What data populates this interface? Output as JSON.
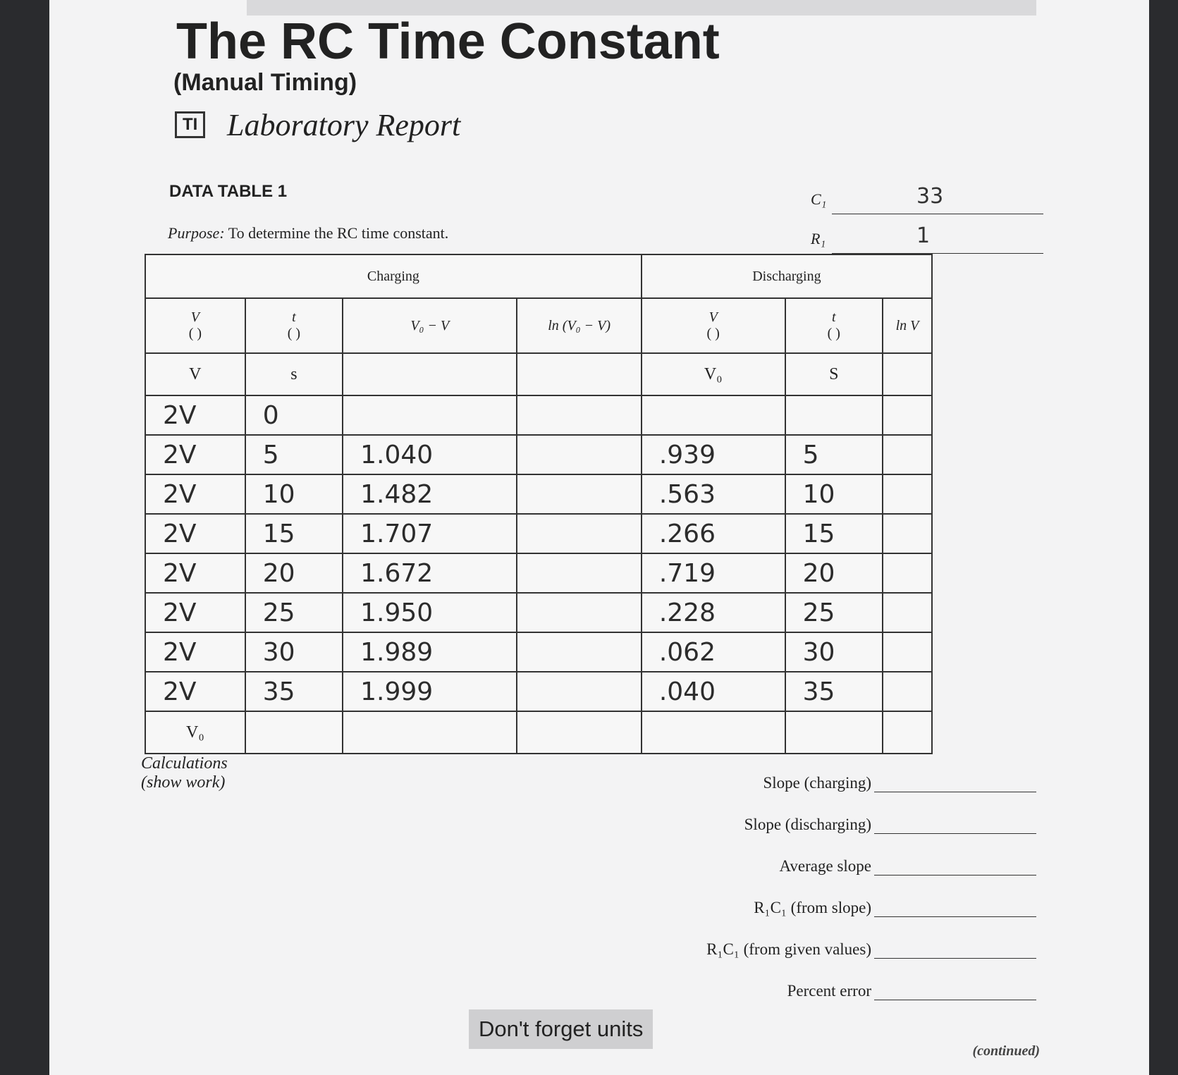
{
  "header": {
    "title": "The RC Time Constant",
    "subtitle": "(Manual Timing)",
    "logo": "TI",
    "report": "Laboratory Report"
  },
  "data_table": {
    "label": "DATA TABLE 1",
    "purpose_label": "Purpose:",
    "purpose": "To determine the RC time constant.",
    "fields": [
      {
        "label": "C₁",
        "value": "33"
      },
      {
        "label": "R₁",
        "value": "1"
      }
    ],
    "groups": [
      "Charging",
      "Discharging"
    ],
    "columns": [
      {
        "name": "V",
        "unit": "(   )"
      },
      {
        "name": "t",
        "unit": "(   )"
      },
      {
        "name": "V₀ − V"
      },
      {
        "name": "ln (V₀ − V)"
      },
      {
        "name": "V",
        "unit": "(   )"
      },
      {
        "name": "t",
        "unit": "(   )"
      },
      {
        "name": "ln V"
      }
    ],
    "rows": [
      [
        "V",
        "s",
        null,
        null,
        "V₀",
        "S",
        null
      ],
      [
        "2V",
        "0",
        null,
        null,
        null,
        null,
        null
      ],
      [
        "2V",
        "5",
        "1.040",
        null,
        ".939",
        "5",
        null
      ],
      [
        "2V",
        "10",
        "1.482",
        null,
        ".563",
        "10",
        null
      ],
      [
        "2V",
        "15",
        "1.707",
        null,
        ".266",
        "15",
        null
      ],
      [
        "2V",
        "20",
        "1.672",
        null,
        ".719",
        "20",
        null
      ],
      [
        "2V",
        "25",
        "1.950",
        null,
        ".228",
        "25",
        null
      ],
      [
        "2V",
        "30",
        "1.989",
        null,
        ".062",
        "30",
        null
      ],
      [
        "2V",
        "35",
        "1.999",
        null,
        ".040",
        "35",
        null
      ],
      [
        "V₀",
        null,
        null,
        null,
        null,
        null,
        null
      ]
    ]
  },
  "calculations": {
    "title": "Calculations",
    "note": "(show work)",
    "results": [
      "Slope (charging)",
      "Slope (discharging)",
      "Average slope",
      "R₁C₁ (from slope)",
      "R₁C₁ (from given values)",
      "Percent error"
    ]
  },
  "reminder": "Don't forget units",
  "footer": "(continued)"
}
